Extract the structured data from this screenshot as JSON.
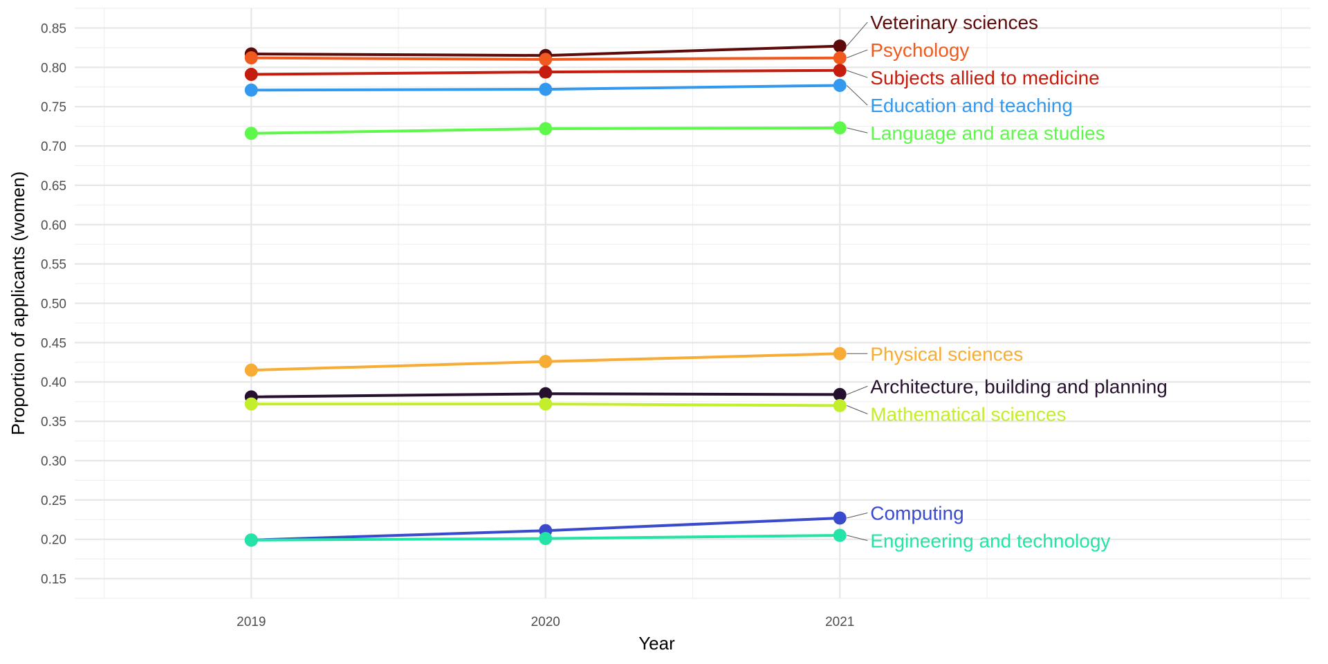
{
  "chart_data": {
    "type": "line",
    "title": "",
    "xlabel": "Year",
    "ylabel": "Proportion of applicants (women)",
    "x": [
      2019,
      2020,
      2021
    ],
    "x_tick_labels": [
      "2019",
      "2020",
      "2021"
    ],
    "xlim": [
      2018.4,
      2022.6
    ],
    "ylim": [
      0.125,
      0.875
    ],
    "y_ticks": [
      0.15,
      0.2,
      0.25,
      0.3,
      0.35,
      0.4,
      0.45,
      0.5,
      0.55,
      0.6,
      0.65,
      0.7,
      0.75,
      0.8,
      0.85
    ],
    "y_tick_labels": [
      "0.15",
      "0.20",
      "0.25",
      "0.30",
      "0.35",
      "0.40",
      "0.45",
      "0.50",
      "0.55",
      "0.60",
      "0.65",
      "0.70",
      "0.75",
      "0.80",
      "0.85"
    ],
    "grid": true,
    "legend": "direct labels at right end of lines",
    "series": [
      {
        "name": "Veterinary sciences",
        "color": "#5c0a0a",
        "values": [
          0.817,
          0.815,
          0.827
        ]
      },
      {
        "name": "Psychology",
        "color": "#f05a1e",
        "values": [
          0.812,
          0.81,
          0.812
        ]
      },
      {
        "name": "Subjects allied to medicine",
        "color": "#c41c0e",
        "values": [
          0.791,
          0.794,
          0.796
        ]
      },
      {
        "name": "Education and teaching",
        "color": "#3399ee",
        "values": [
          0.771,
          0.772,
          0.777
        ]
      },
      {
        "name": "Language and area studies",
        "color": "#5ef84a",
        "values": [
          0.716,
          0.722,
          0.723
        ]
      },
      {
        "name": "Physical sciences",
        "color": "#f7ac35",
        "values": [
          0.415,
          0.426,
          0.436
        ]
      },
      {
        "name": "Architecture, building and planning",
        "color": "#26102e",
        "values": [
          0.381,
          0.385,
          0.384
        ]
      },
      {
        "name": "Mathematical sciences",
        "color": "#c3ee2c",
        "values": [
          0.372,
          0.372,
          0.37
        ]
      },
      {
        "name": "Computing",
        "color": "#3a4acd",
        "values": [
          0.199,
          0.211,
          0.227
        ]
      },
      {
        "name": "Engineering and technology",
        "color": "#24e3a6",
        "values": [
          0.199,
          0.201,
          0.205
        ]
      }
    ]
  }
}
